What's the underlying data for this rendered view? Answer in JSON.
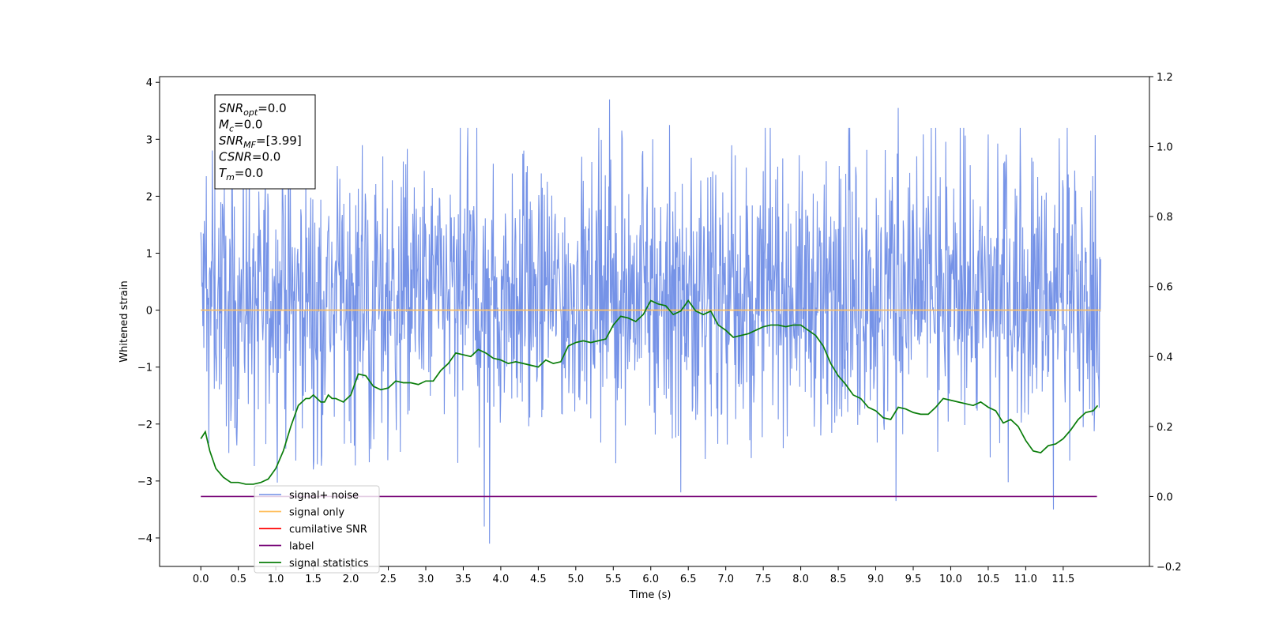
{
  "chart_data": {
    "type": "line",
    "xlabel": "Time (s)",
    "ylabel": "Whitened strain",
    "ylabel_right": "",
    "xlim": [
      -0.55,
      12.65
    ],
    "ylim_left": [
      -4.5,
      4.1
    ],
    "ylim_right": [
      -0.2,
      1.2
    ],
    "x_ticks": [
      0.0,
      0.5,
      1.0,
      1.5,
      2.0,
      2.5,
      3.0,
      3.5,
      4.0,
      4.5,
      5.0,
      5.5,
      6.0,
      6.5,
      7.0,
      7.5,
      8.0,
      8.5,
      9.0,
      9.5,
      10.0,
      10.5,
      11.0,
      11.5
    ],
    "x_tick_labels": [
      "0.0",
      "0.5",
      "1.0",
      "1.5",
      "2.0",
      "2.5",
      "3.0",
      "3.5",
      "4.0",
      "4.5",
      "5.0",
      "5.5",
      "6.0",
      "6.5",
      "7.0",
      "7.5",
      "8.0",
      "8.5",
      "9.0",
      "9.5",
      "10.0",
      "10.5",
      "11.0",
      "11.5"
    ],
    "y_ticks_left": [
      -4,
      -3,
      -2,
      -1,
      0,
      1,
      2,
      3,
      4
    ],
    "y_tick_labels_left": [
      "−4",
      "−3",
      "−2",
      "−1",
      "0",
      "1",
      "2",
      "3",
      "4"
    ],
    "y_ticks_right": [
      -0.2,
      0.0,
      0.2,
      0.4,
      0.6,
      0.8,
      1.0,
      1.2
    ],
    "y_tick_labels_right": [
      "−0.2",
      "0.0",
      "0.2",
      "0.4",
      "0.6",
      "0.8",
      "1.0",
      "1.2"
    ],
    "grid": false,
    "legend_position": "bottom-left",
    "info_box": {
      "lines": [
        {
          "base": "SNR",
          "sub": "opt",
          "value": "=0.0"
        },
        {
          "base": "M",
          "sub": "c",
          "value": "=0.0"
        },
        {
          "base": "SNR",
          "sub": "MF",
          "value": "=[3.99]"
        },
        {
          "base": "CSNR",
          "sub": "",
          "value": "=0.0"
        },
        {
          "base": "T",
          "sub": "m",
          "value": "=0.0"
        }
      ]
    },
    "series": [
      {
        "name": "signal+ noise",
        "axis": "left",
        "color": "#6f8de6",
        "kind": "noise",
        "x_range": [
          0.0,
          12.0
        ],
        "mean": 0.3,
        "envelope_upper": 2.3,
        "envelope_lower": -1.5,
        "peak_max": 3.7,
        "peak_min": -4.1,
        "notable_extremes": [
          {
            "x": 5.45,
            "y": 3.7
          },
          {
            "x": 6.25,
            "y": 3.25
          },
          {
            "x": 9.3,
            "y": 3.55
          },
          {
            "x": 3.85,
            "y": -4.1
          },
          {
            "x": 3.78,
            "y": -3.8
          },
          {
            "x": 9.27,
            "y": -3.35
          },
          {
            "x": 11.37,
            "y": -3.5
          },
          {
            "x": 6.4,
            "y": -3.2
          }
        ]
      },
      {
        "name": "signal only",
        "axis": "left",
        "color": "#ffbf5e",
        "x": [
          0.0,
          12.0
        ],
        "y": [
          0.0,
          0.0
        ]
      },
      {
        "name": "cumilative SNR",
        "axis": "right",
        "color": "#ff0000",
        "x": [],
        "y": []
      },
      {
        "name": "label",
        "axis": "right",
        "color": "#7a0a7a",
        "x": [
          0.0,
          11.95
        ],
        "y": [
          0.0,
          0.0
        ]
      },
      {
        "name": "signal statistics",
        "axis": "right",
        "color": "#0a7d0a",
        "x": [
          0.0,
          0.06,
          0.12,
          0.2,
          0.3,
          0.4,
          0.5,
          0.6,
          0.7,
          0.8,
          0.9,
          1.0,
          1.1,
          1.2,
          1.3,
          1.4,
          1.45,
          1.5,
          1.55,
          1.6,
          1.65,
          1.7,
          1.75,
          1.8,
          1.9,
          2.0,
          2.1,
          2.2,
          2.3,
          2.4,
          2.5,
          2.6,
          2.7,
          2.8,
          2.9,
          3.0,
          3.1,
          3.2,
          3.3,
          3.4,
          3.5,
          3.6,
          3.7,
          3.8,
          3.9,
          4.0,
          4.1,
          4.2,
          4.3,
          4.4,
          4.5,
          4.6,
          4.7,
          4.8,
          4.9,
          5.0,
          5.1,
          5.2,
          5.3,
          5.4,
          5.5,
          5.6,
          5.7,
          5.8,
          5.9,
          6.0,
          6.1,
          6.2,
          6.3,
          6.4,
          6.5,
          6.6,
          6.7,
          6.8,
          6.9,
          7.0,
          7.1,
          7.2,
          7.3,
          7.4,
          7.5,
          7.6,
          7.7,
          7.8,
          7.9,
          8.0,
          8.1,
          8.2,
          8.3,
          8.4,
          8.5,
          8.6,
          8.7,
          8.8,
          8.9,
          9.0,
          9.1,
          9.2,
          9.3,
          9.4,
          9.5,
          9.6,
          9.7,
          9.8,
          9.9,
          10.0,
          10.1,
          10.2,
          10.3,
          10.4,
          10.5,
          10.6,
          10.7,
          10.8,
          10.9,
          11.0,
          11.1,
          11.2,
          11.3,
          11.4,
          11.5,
          11.6,
          11.7,
          11.8,
          11.9,
          11.96
        ],
        "y": [
          0.165,
          0.185,
          0.13,
          0.08,
          0.055,
          0.04,
          0.04,
          0.035,
          0.035,
          0.04,
          0.05,
          0.08,
          0.13,
          0.2,
          0.26,
          0.28,
          0.28,
          0.29,
          0.28,
          0.27,
          0.27,
          0.29,
          0.28,
          0.28,
          0.27,
          0.29,
          0.35,
          0.345,
          0.315,
          0.305,
          0.31,
          0.33,
          0.325,
          0.325,
          0.32,
          0.33,
          0.33,
          0.36,
          0.38,
          0.41,
          0.405,
          0.4,
          0.42,
          0.41,
          0.395,
          0.39,
          0.38,
          0.385,
          0.38,
          0.375,
          0.37,
          0.39,
          0.38,
          0.385,
          0.43,
          0.44,
          0.445,
          0.44,
          0.445,
          0.45,
          0.49,
          0.515,
          0.51,
          0.5,
          0.52,
          0.56,
          0.55,
          0.545,
          0.52,
          0.53,
          0.56,
          0.53,
          0.52,
          0.53,
          0.49,
          0.475,
          0.455,
          0.46,
          0.465,
          0.475,
          0.485,
          0.49,
          0.49,
          0.485,
          0.49,
          0.49,
          0.475,
          0.46,
          0.43,
          0.38,
          0.345,
          0.32,
          0.29,
          0.28,
          0.255,
          0.245,
          0.225,
          0.22,
          0.255,
          0.25,
          0.24,
          0.235,
          0.235,
          0.255,
          0.28,
          0.275,
          0.27,
          0.265,
          0.26,
          0.27,
          0.255,
          0.245,
          0.21,
          0.22,
          0.2,
          0.16,
          0.13,
          0.125,
          0.145,
          0.15,
          0.165,
          0.19,
          0.22,
          0.24,
          0.245,
          0.26
        ]
      }
    ]
  }
}
